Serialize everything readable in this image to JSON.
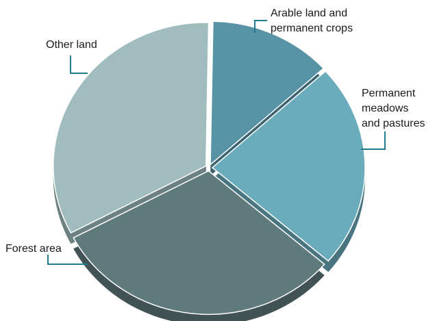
{
  "chart_data": {
    "type": "pie",
    "title": "",
    "slices": [
      {
        "label": "Arable land and permanent crops",
        "label_lines": [
          "Arable land and",
          "permanent crops"
        ],
        "value": 13,
        "color": "#5893a5"
      },
      {
        "label": "Permanent meadows and pastures",
        "label_lines": [
          "Permanent",
          "meadows",
          "and pastures"
        ],
        "value": 23,
        "color": "#6aacbb"
      },
      {
        "label": "Forest area",
        "label_lines": [
          "Forest area"
        ],
        "value": 31,
        "color": "#5f7a7b"
      },
      {
        "label": "Other land",
        "label_lines": [
          "Other land"
        ],
        "value": 33,
        "color": "#a1bcbf"
      }
    ],
    "legend": "none",
    "style": "3d-exploded"
  }
}
